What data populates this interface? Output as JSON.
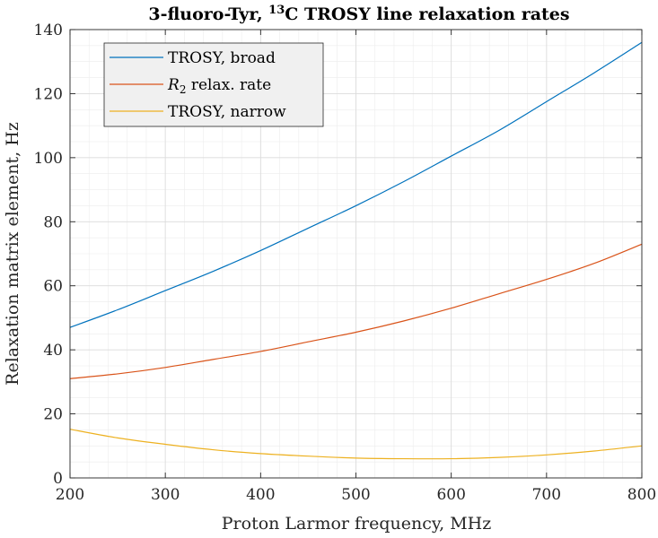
{
  "chart_data": {
    "type": "line",
    "title_parts": [
      "3-fluoro-Tyr, ",
      "13",
      "C TROSY line relaxation rates"
    ],
    "xlabel": "Proton Larmor frequency, MHz",
    "ylabel": "Relaxation matrix element, Hz",
    "xlim": [
      200,
      800
    ],
    "ylim": [
      0,
      140
    ],
    "xticks": [
      200,
      300,
      400,
      500,
      600,
      700,
      800
    ],
    "yticks": [
      0,
      20,
      40,
      60,
      80,
      100,
      120,
      140
    ],
    "grid": true,
    "minor_grid": true,
    "legend_position": "top-left",
    "x": [
      200,
      250,
      300,
      350,
      400,
      450,
      500,
      550,
      600,
      650,
      700,
      750,
      800
    ],
    "series": [
      {
        "name": "TROSY, broad",
        "color": "#0072BD",
        "values": [
          47,
          52.5,
          58.5,
          64.5,
          71,
          78,
          85,
          92.5,
          100.5,
          108.5,
          117.5,
          126.5,
          136
        ]
      },
      {
        "name_parts": [
          "R",
          "2",
          " relax. rate"
        ],
        "color": "#D95319",
        "values": [
          31,
          32.5,
          34.5,
          37,
          39.5,
          42.5,
          45.5,
          49,
          53,
          57.5,
          62,
          67,
          73
        ]
      },
      {
        "name": "TROSY, narrow",
        "color": "#EDB120",
        "values": [
          15.2,
          12.5,
          10.5,
          8.8,
          7.6,
          6.8,
          6.2,
          6.0,
          6.0,
          6.4,
          7.2,
          8.4,
          10.0
        ]
      }
    ]
  }
}
